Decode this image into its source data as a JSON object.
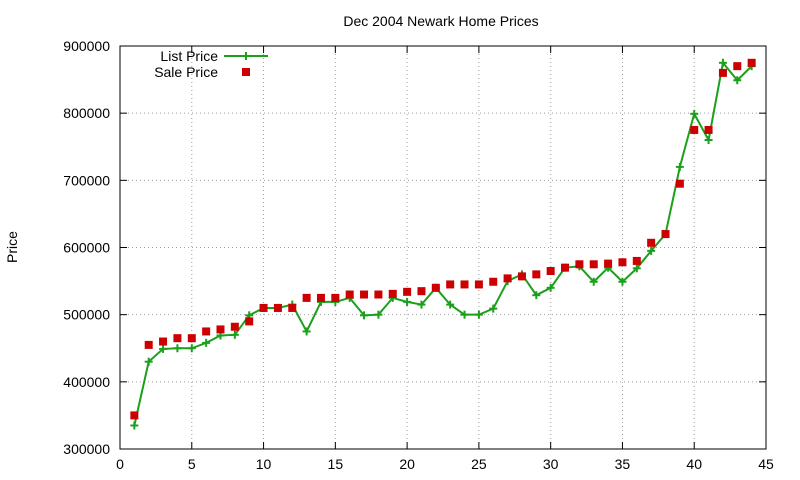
{
  "chart_data": {
    "type": "line",
    "title": "Dec 2004 Newark Home Prices",
    "xlabel": "",
    "ylabel": "Price",
    "xlim": [
      0,
      45
    ],
    "ylim": [
      300000,
      900000
    ],
    "x_ticks": [
      0,
      5,
      10,
      15,
      20,
      25,
      30,
      35,
      40,
      45
    ],
    "y_ticks": [
      300000,
      400000,
      500000,
      600000,
      700000,
      800000,
      900000
    ],
    "grid": true,
    "legend_position": "top-left",
    "series": [
      {
        "name": "List Price",
        "style": "lines+points",
        "marker": "plus",
        "color": "#1aa01a",
        "x": [
          1,
          2,
          3,
          4,
          5,
          6,
          7,
          8,
          9,
          10,
          11,
          12,
          13,
          14,
          15,
          16,
          17,
          18,
          19,
          20,
          21,
          22,
          23,
          24,
          25,
          26,
          27,
          28,
          29,
          30,
          31,
          32,
          33,
          34,
          35,
          36,
          37,
          38,
          39,
          40,
          41,
          42,
          43,
          44
        ],
        "y": [
          335000,
          430000,
          449000,
          450000,
          450000,
          458000,
          469000,
          470000,
          499000,
          510000,
          510000,
          515000,
          475000,
          519000,
          519000,
          525000,
          499000,
          500000,
          525000,
          519000,
          515000,
          540000,
          515000,
          500000,
          500000,
          509000,
          550000,
          560000,
          529000,
          540000,
          570000,
          572000,
          549000,
          570000,
          549000,
          569000,
          595000,
          620000,
          720000,
          799000,
          760000,
          875000,
          849000,
          870000
        ]
      },
      {
        "name": "Sale Price",
        "style": "points",
        "marker": "square",
        "color": "#cc0000",
        "x": [
          1,
          2,
          3,
          4,
          5,
          6,
          7,
          8,
          9,
          10,
          11,
          12,
          13,
          14,
          15,
          16,
          17,
          18,
          19,
          20,
          21,
          22,
          23,
          24,
          25,
          26,
          27,
          28,
          29,
          30,
          31,
          32,
          33,
          34,
          35,
          36,
          37,
          38,
          39,
          40,
          41,
          42,
          43,
          44
        ],
        "y": [
          350000,
          455000,
          460000,
          465000,
          465000,
          475000,
          478000,
          482000,
          490000,
          510000,
          510000,
          510000,
          525000,
          525000,
          525000,
          530000,
          530000,
          530000,
          531000,
          534000,
          535000,
          540000,
          545000,
          545000,
          545000,
          549000,
          554000,
          557000,
          560000,
          565000,
          570000,
          575000,
          575000,
          576000,
          578000,
          580000,
          607000,
          620000,
          695000,
          775000,
          775000,
          860000,
          870000,
          875000
        ]
      }
    ]
  }
}
